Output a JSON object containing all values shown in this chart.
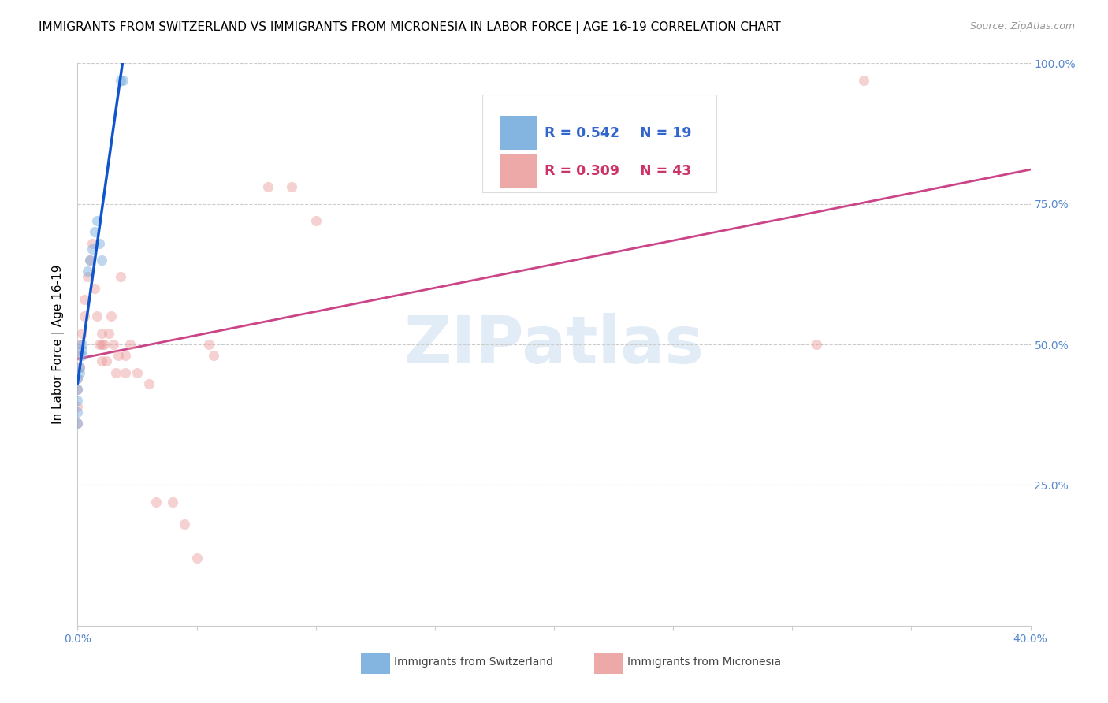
{
  "title": "IMMIGRANTS FROM SWITZERLAND VS IMMIGRANTS FROM MICRONESIA IN LABOR FORCE | AGE 16-19 CORRELATION CHART",
  "source": "Source: ZipAtlas.com",
  "ylabel": "In Labor Force | Age 16-19",
  "xlim": [
    0.0,
    0.4
  ],
  "ylim": [
    0.0,
    1.0
  ],
  "switzerland_color": "#6fa8dc",
  "micronesia_color": "#ea9999",
  "trendline_switzerland_color": "#1155cc",
  "trendline_micronesia_color": "#cc4488",
  "R_switzerland": 0.542,
  "N_switzerland": 19,
  "R_micronesia": 0.309,
  "N_micronesia": 43,
  "watermark": "ZIPatlas",
  "switzerland_x": [
    0.0,
    0.0,
    0.0,
    0.0,
    0.0,
    0.001,
    0.001,
    0.002,
    0.002,
    0.002,
    0.004,
    0.005,
    0.006,
    0.007,
    0.008,
    0.009,
    0.01,
    0.018,
    0.019
  ],
  "switzerland_y": [
    0.36,
    0.38,
    0.4,
    0.42,
    0.44,
    0.45,
    0.46,
    0.48,
    0.49,
    0.5,
    0.63,
    0.65,
    0.67,
    0.7,
    0.72,
    0.68,
    0.65,
    0.97,
    0.97
  ],
  "micronesia_x": [
    0.0,
    0.0,
    0.0,
    0.0,
    0.001,
    0.001,
    0.001,
    0.002,
    0.003,
    0.003,
    0.004,
    0.005,
    0.006,
    0.007,
    0.008,
    0.009,
    0.01,
    0.01,
    0.01,
    0.011,
    0.012,
    0.013,
    0.014,
    0.015,
    0.016,
    0.017,
    0.018,
    0.02,
    0.02,
    0.022,
    0.025,
    0.03,
    0.033,
    0.04,
    0.045,
    0.05,
    0.055,
    0.057,
    0.08,
    0.09,
    0.1,
    0.31,
    0.33
  ],
  "micronesia_y": [
    0.36,
    0.39,
    0.42,
    0.44,
    0.46,
    0.48,
    0.5,
    0.52,
    0.55,
    0.58,
    0.62,
    0.65,
    0.68,
    0.6,
    0.55,
    0.5,
    0.47,
    0.5,
    0.52,
    0.5,
    0.47,
    0.52,
    0.55,
    0.5,
    0.45,
    0.48,
    0.62,
    0.45,
    0.48,
    0.5,
    0.45,
    0.43,
    0.22,
    0.22,
    0.18,
    0.12,
    0.5,
    0.48,
    0.78,
    0.78,
    0.72,
    0.5,
    0.97
  ],
  "marker_size": 90,
  "marker_alpha": 0.45,
  "grid_color": "#cccccc",
  "background_color": "#ffffff",
  "title_fontsize": 11,
  "axis_label_fontsize": 11,
  "tick_fontsize": 10,
  "tick_color": "#5588cc",
  "legend_fontsize": 12,
  "legend_color_switzerland": "#3366cc",
  "legend_color_micronesia": "#cc3366"
}
